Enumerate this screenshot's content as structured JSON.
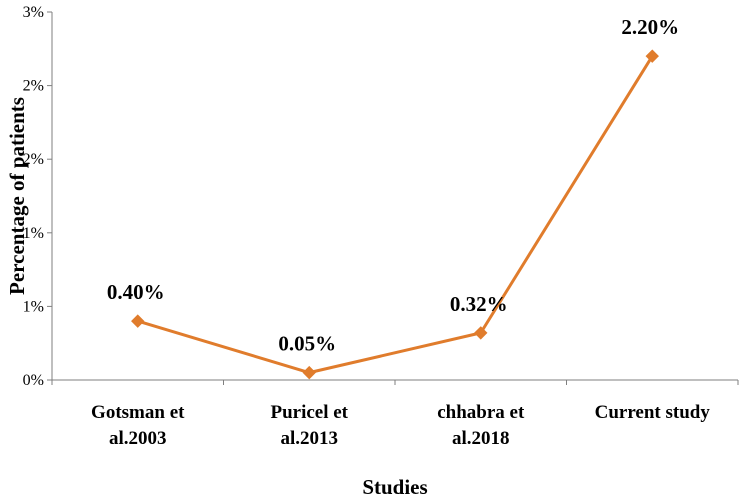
{
  "chart_data": {
    "type": "line",
    "xlabel": "Studies",
    "ylabel": "Percentage of patients",
    "categories": [
      [
        "Gotsman et",
        "al.2003"
      ],
      [
        "Puricel et",
        "al.2013"
      ],
      [
        "chhabra et",
        "al.2018"
      ],
      [
        "Current study"
      ]
    ],
    "series": [
      {
        "values": [
          0.4,
          0.05,
          0.32,
          2.2
        ],
        "color": "#E07C2C",
        "marker": "diamond"
      }
    ],
    "data_labels": [
      "0.40%",
      "0.05%",
      "0.32%",
      "2.20%"
    ],
    "ylim": [
      0,
      2.5
    ],
    "yticks": [
      0,
      0.5,
      1.0,
      1.5,
      2.0,
      2.5
    ],
    "ytick_labels": [
      "0%",
      "1%",
      "1%",
      "2%",
      "2%",
      "3%"
    ],
    "grid": false,
    "legend": "none"
  }
}
